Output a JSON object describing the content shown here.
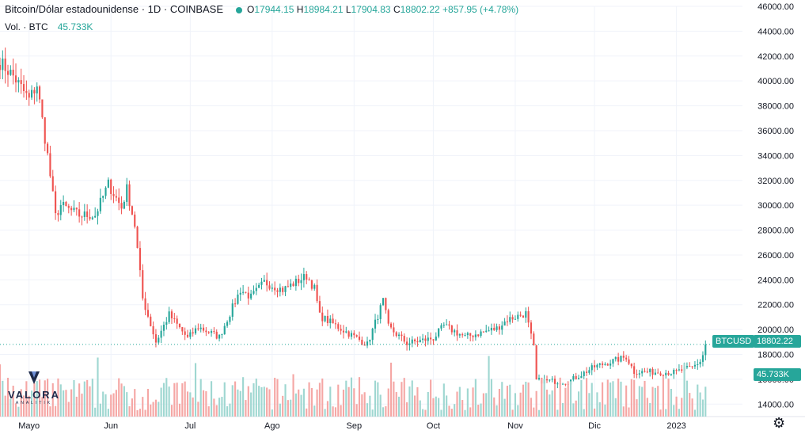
{
  "header": {
    "title": "Bitcoin/Dólar estadounidense · 1D · COINBASE",
    "open_label": "O",
    "open": "17944.15",
    "high_label": "H",
    "high": "18984.21",
    "low_label": "L",
    "low": "17904.83",
    "close_label": "C",
    "close": "18802.22",
    "change": "+857.95 (+4.78%)"
  },
  "volume": {
    "label": "Vol. · BTC",
    "value": "45.733K"
  },
  "price_tag": {
    "symbol": "BTCUSD",
    "value": "18802.22"
  },
  "volume_tag": "45.733K",
  "logo": {
    "name": "VALORA",
    "sub": "ANALITIK"
  },
  "colors": {
    "up": "#26a69a",
    "down": "#ef5350",
    "vol_up": "#9fd7d1",
    "vol_down": "#f5a7a5",
    "grid": "#f0f3fa"
  },
  "chart_data": {
    "type": "candlestick",
    "ylim": [
      13000,
      46000
    ],
    "y_ticks": [
      "46000.00",
      "44000.00",
      "42000.00",
      "40000.00",
      "38000.00",
      "36000.00",
      "34000.00",
      "32000.00",
      "30000.00",
      "28000.00",
      "26000.00",
      "24000.00",
      "22000.00",
      "20000.00",
      "18000.00",
      "16000.00",
      "14000.00"
    ],
    "x_tick_labels": [
      "Mayo",
      "Jun",
      "Jul",
      "Ago",
      "Sep",
      "Oct",
      "Nov",
      "Dic",
      "2023"
    ],
    "x_tick_dates": [
      "2022-05-01",
      "2022-06-01",
      "2022-07-01",
      "2022-08-01",
      "2022-09-01",
      "2022-10-01",
      "2022-11-01",
      "2022-12-01",
      "2023-01-01"
    ],
    "last_close": 18802.22,
    "close_keypoints": [
      [
        "2022-04-20",
        41500
      ],
      [
        "2022-04-25",
        40400
      ],
      [
        "2022-05-01",
        38500
      ],
      [
        "2022-05-04",
        39700
      ],
      [
        "2022-05-08",
        34000
      ],
      [
        "2022-05-11",
        29100
      ],
      [
        "2022-05-13",
        30000
      ],
      [
        "2022-05-20",
        29200
      ],
      [
        "2022-05-26",
        29200
      ],
      [
        "2022-05-31",
        31700
      ],
      [
        "2022-06-05",
        29800
      ],
      [
        "2022-06-07",
        31300
      ],
      [
        "2022-06-10",
        28400
      ],
      [
        "2022-06-13",
        22500
      ],
      [
        "2022-06-18",
        19000
      ],
      [
        "2022-06-23",
        21200
      ],
      [
        "2022-06-30",
        19300
      ],
      [
        "2022-07-04",
        20200
      ],
      [
        "2022-07-12",
        19400
      ],
      [
        "2022-07-16",
        21300
      ],
      [
        "2022-07-20",
        23200
      ],
      [
        "2022-07-24",
        22600
      ],
      [
        "2022-07-29",
        23800
      ],
      [
        "2022-08-05",
        23200
      ],
      [
        "2022-08-14",
        24300
      ],
      [
        "2022-08-17",
        23300
      ],
      [
        "2022-08-19",
        21100
      ],
      [
        "2022-08-26",
        20200
      ],
      [
        "2022-09-06",
        18800
      ],
      [
        "2022-09-12",
        22300
      ],
      [
        "2022-09-14",
        20200
      ],
      [
        "2022-09-21",
        18900
      ],
      [
        "2022-10-01",
        19300
      ],
      [
        "2022-10-05",
        20300
      ],
      [
        "2022-10-13",
        19400
      ],
      [
        "2022-10-25",
        20100
      ],
      [
        "2022-10-29",
        20800
      ],
      [
        "2022-11-05",
        21300
      ],
      [
        "2022-11-08",
        18500
      ],
      [
        "2022-11-09",
        15900
      ],
      [
        "2022-11-21",
        15800
      ],
      [
        "2022-12-01",
        17000
      ],
      [
        "2022-12-13",
        17800
      ],
      [
        "2022-12-16",
        16600
      ],
      [
        "2022-12-31",
        16550
      ],
      [
        "2023-01-07",
        16950
      ],
      [
        "2023-01-10",
        17450
      ],
      [
        "2023-01-11",
        17944
      ],
      [
        "2023-01-12",
        18802
      ]
    ]
  }
}
